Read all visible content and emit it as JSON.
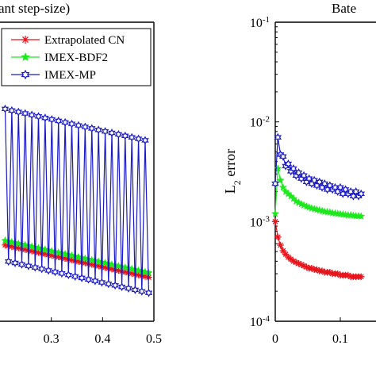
{
  "chart_data": [
    {
      "type": "line",
      "title": "ant step-size)",
      "xlabel": "",
      "ylabel": "",
      "xlim": [
        0.2,
        0.5
      ],
      "ylim": [
        0,
        1
      ],
      "x_ticks": [
        "0.3",
        "0.4",
        "0.5"
      ],
      "legend": {
        "placement": "top-right"
      },
      "series": [
        {
          "name": "Extrapolated CN",
          "color": "#e8141c",
          "marker": "asterisk",
          "x": [
            0.21,
            0.2165,
            0.223,
            0.2295,
            0.236,
            0.2425,
            0.249,
            0.2555,
            0.262,
            0.2685,
            0.275,
            0.2815,
            0.288,
            0.2945,
            0.301,
            0.3075,
            0.314,
            0.3205,
            0.327,
            0.3335,
            0.34,
            0.3465,
            0.353,
            0.3595,
            0.366,
            0.3725,
            0.379,
            0.3855,
            0.392,
            0.3985,
            0.405,
            0.4115,
            0.418,
            0.4245,
            0.431,
            0.4375,
            0.444,
            0.4505,
            0.457,
            0.4635,
            0.47,
            0.4765,
            0.483,
            0.49
          ],
          "values": [
            0.255,
            0.2525,
            0.25,
            0.2475,
            0.245,
            0.2425,
            0.24,
            0.2375,
            0.235,
            0.2325,
            0.23,
            0.2275,
            0.225,
            0.2225,
            0.22,
            0.2175,
            0.215,
            0.2125,
            0.21,
            0.2075,
            0.205,
            0.2025,
            0.2,
            0.1975,
            0.195,
            0.1925,
            0.19,
            0.1875,
            0.185,
            0.1825,
            0.18,
            0.1775,
            0.175,
            0.1725,
            0.17,
            0.1675,
            0.165,
            0.1625,
            0.16,
            0.1575,
            0.155,
            0.1525,
            0.15,
            0.147
          ]
        },
        {
          "name": "IMEX-BDF2",
          "color": "#1ee81e",
          "marker": "star",
          "x": [
            0.21,
            0.2165,
            0.223,
            0.2295,
            0.236,
            0.2425,
            0.249,
            0.2555,
            0.262,
            0.2685,
            0.275,
            0.2815,
            0.288,
            0.2945,
            0.301,
            0.3075,
            0.314,
            0.3205,
            0.327,
            0.3335,
            0.34,
            0.3465,
            0.353,
            0.3595,
            0.366,
            0.3725,
            0.379,
            0.3855,
            0.392,
            0.3985,
            0.405,
            0.4115,
            0.418,
            0.4245,
            0.431,
            0.4375,
            0.444,
            0.4505,
            0.457,
            0.4635,
            0.47,
            0.4765,
            0.483,
            0.49
          ],
          "values": [
            0.27,
            0.2675,
            0.265,
            0.2625,
            0.26,
            0.2575,
            0.255,
            0.2525,
            0.25,
            0.2475,
            0.245,
            0.2425,
            0.24,
            0.2375,
            0.235,
            0.2325,
            0.23,
            0.2275,
            0.225,
            0.2225,
            0.22,
            0.2175,
            0.215,
            0.2125,
            0.21,
            0.2075,
            0.205,
            0.2025,
            0.2,
            0.1975,
            0.195,
            0.1925,
            0.19,
            0.1875,
            0.185,
            0.1825,
            0.18,
            0.1775,
            0.175,
            0.1725,
            0.17,
            0.1675,
            0.165,
            0.162
          ]
        },
        {
          "name": "IMEX-MP",
          "color": "#1a1ac8",
          "marker": "hexagram",
          "x": [
            0.21,
            0.2165,
            0.223,
            0.2295,
            0.236,
            0.2425,
            0.249,
            0.2555,
            0.262,
            0.2685,
            0.275,
            0.2815,
            0.288,
            0.2945,
            0.301,
            0.3075,
            0.314,
            0.3205,
            0.327,
            0.3335,
            0.34,
            0.3465,
            0.353,
            0.3595,
            0.366,
            0.3725,
            0.379,
            0.3855,
            0.392,
            0.3985,
            0.405,
            0.4115,
            0.418,
            0.4245,
            0.431,
            0.4375,
            0.444,
            0.4505,
            0.457,
            0.4635,
            0.47,
            0.4765,
            0.483,
            0.49
          ],
          "values": [
            0.71,
            0.2,
            0.705,
            0.195,
            0.7,
            0.19,
            0.695,
            0.185,
            0.69,
            0.18,
            0.685,
            0.175,
            0.68,
            0.17,
            0.675,
            0.165,
            0.67,
            0.16,
            0.665,
            0.155,
            0.66,
            0.15,
            0.655,
            0.145,
            0.65,
            0.14,
            0.645,
            0.135,
            0.64,
            0.13,
            0.635,
            0.125,
            0.63,
            0.12,
            0.625,
            0.115,
            0.62,
            0.11,
            0.615,
            0.105,
            0.61,
            0.1,
            0.605,
            0.095
          ]
        }
      ]
    },
    {
      "type": "line",
      "title": "Bate",
      "xlabel": "",
      "ylabel": "L_2 error",
      "ylabel_main": "L",
      "ylabel_sub": "2",
      "ylabel_rest": " error",
      "y_scale": "log",
      "ylim": [
        0.0001,
        0.1
      ],
      "xlim": [
        0,
        0.2
      ],
      "x_ticks": [
        "0",
        "0.1"
      ],
      "y_ticks": [
        {
          "base": "10",
          "exp": "-1",
          "value": 0.1
        },
        {
          "base": "10",
          "exp": "-2",
          "value": 0.01
        },
        {
          "base": "10",
          "exp": "-3",
          "value": 0.001
        },
        {
          "base": "10",
          "exp": "-4",
          "value": 0.0001
        }
      ],
      "series": [
        {
          "name": "Extrapolated CN",
          "color": "#e8141c",
          "marker": "asterisk",
          "x": [
            0.0,
            0.004,
            0.008,
            0.012,
            0.016,
            0.02,
            0.024,
            0.028,
            0.032,
            0.036,
            0.04,
            0.044,
            0.048,
            0.052,
            0.056,
            0.06,
            0.064,
            0.068,
            0.072,
            0.076,
            0.08,
            0.084,
            0.088,
            0.092,
            0.096,
            0.1,
            0.104,
            0.108,
            0.112,
            0.116,
            0.12,
            0.124,
            0.128,
            0.132
          ],
          "values": [
            0.001,
            0.0007,
            0.00058,
            0.00051,
            0.00047,
            0.00044,
            0.00042,
            0.0004,
            0.00039,
            0.00038,
            0.00037,
            0.00036,
            0.00035,
            0.00034,
            0.00034,
            0.00033,
            0.00033,
            0.00032,
            0.00032,
            0.00031,
            0.00031,
            0.00031,
            0.0003,
            0.0003,
            0.0003,
            0.00029,
            0.00029,
            0.00029,
            0.00029,
            0.00028,
            0.00028,
            0.00028,
            0.00028,
            0.00028
          ]
        },
        {
          "name": "IMEX-BDF2",
          "color": "#1ee81e",
          "marker": "star",
          "x": [
            0.0,
            0.004,
            0.008,
            0.012,
            0.016,
            0.02,
            0.024,
            0.028,
            0.032,
            0.036,
            0.04,
            0.044,
            0.048,
            0.052,
            0.056,
            0.06,
            0.064,
            0.068,
            0.072,
            0.076,
            0.08,
            0.084,
            0.088,
            0.092,
            0.096,
            0.1,
            0.104,
            0.108,
            0.112,
            0.116,
            0.12,
            0.124,
            0.128,
            0.132
          ],
          "values": [
            0.0012,
            0.0034,
            0.0026,
            0.0022,
            0.002,
            0.0019,
            0.0018,
            0.0017,
            0.0016,
            0.00155,
            0.0015,
            0.00146,
            0.00142,
            0.00139,
            0.00136,
            0.00134,
            0.00132,
            0.0013,
            0.00128,
            0.00126,
            0.00125,
            0.00124,
            0.00122,
            0.00121,
            0.0012,
            0.00119,
            0.00118,
            0.00117,
            0.00116,
            0.00116,
            0.00115,
            0.00114,
            0.00114,
            0.00113
          ]
        },
        {
          "name": "IMEX-MP",
          "color": "#1a1ac8",
          "marker": "hexagram",
          "x": [
            0.0,
            0.004,
            0.008,
            0.012,
            0.016,
            0.02,
            0.024,
            0.028,
            0.032,
            0.036,
            0.04,
            0.044,
            0.048,
            0.052,
            0.056,
            0.06,
            0.064,
            0.068,
            0.072,
            0.076,
            0.08,
            0.084,
            0.088,
            0.092,
            0.096,
            0.1,
            0.104,
            0.108,
            0.112,
            0.116,
            0.12,
            0.124,
            0.128,
            0.132
          ],
          "values": [
            0.0024,
            0.007,
            0.0047,
            0.0045,
            0.0036,
            0.0038,
            0.0032,
            0.0034,
            0.0029,
            0.0031,
            0.0027,
            0.0029,
            0.0025,
            0.0027,
            0.0024,
            0.0026,
            0.0023,
            0.0025,
            0.0022,
            0.0024,
            0.0021,
            0.0023,
            0.0021,
            0.0022,
            0.002,
            0.0022,
            0.0019,
            0.0021,
            0.0019,
            0.002,
            0.0018,
            0.002,
            0.0018,
            0.0019
          ]
        }
      ]
    }
  ]
}
